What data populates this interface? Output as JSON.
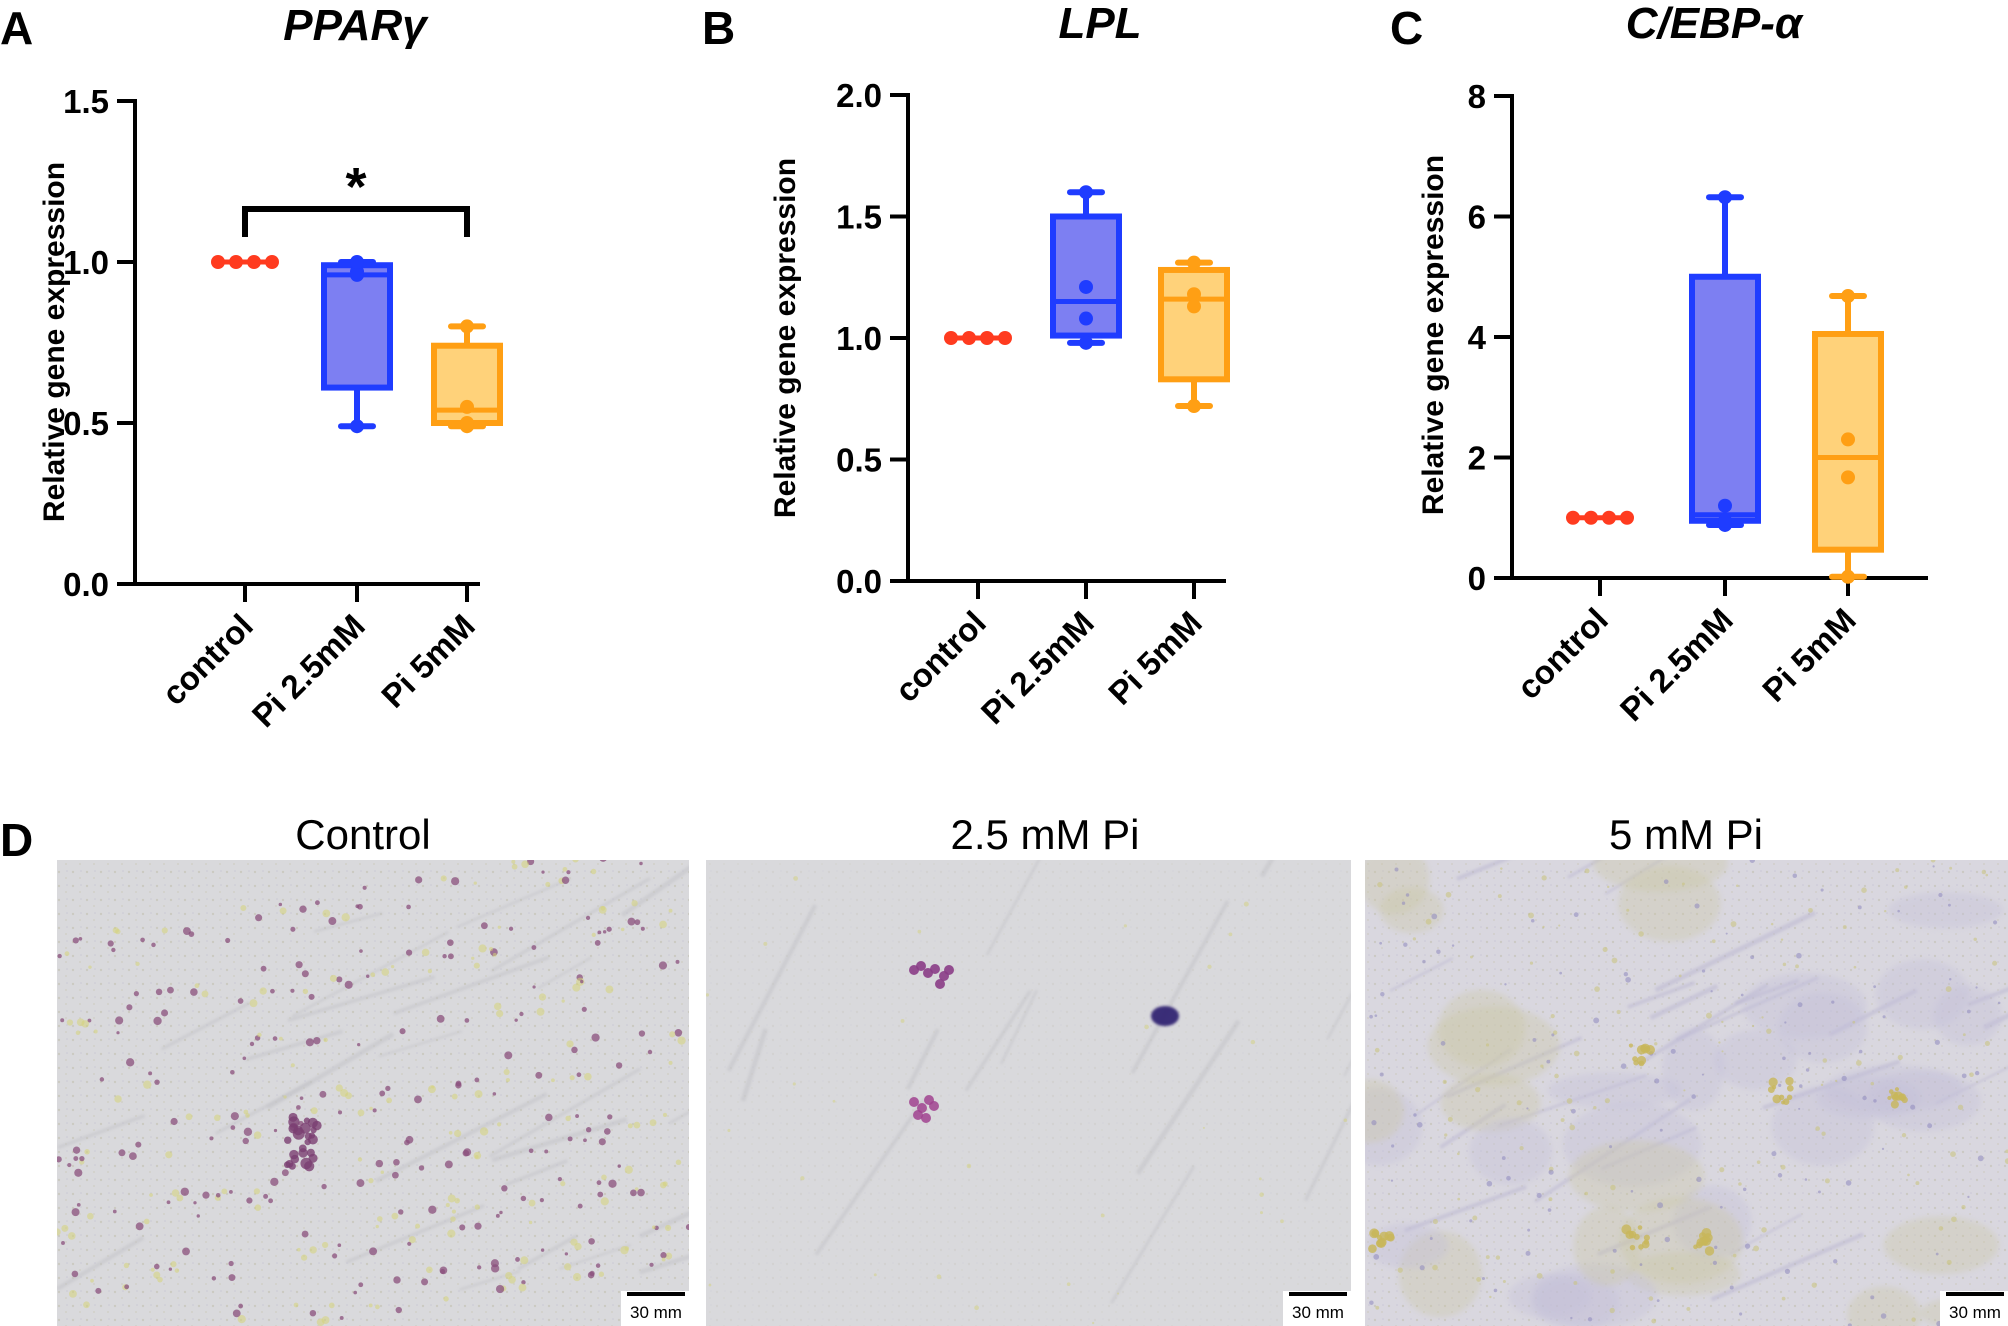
{
  "colors": {
    "control": "#ff3b1f",
    "pi25_stroke": "#1f3cff",
    "pi25_fill": "#7d7ff2",
    "pi5_stroke": "#ff9f14",
    "pi5_fill": "#ffd27a"
  },
  "chart_data": [
    {
      "panel": "A",
      "type": "box",
      "title": "PPARγ",
      "ylabel": "Relative gene expression",
      "ylim": [
        0,
        1.5
      ],
      "yticks": [
        "0.0",
        "0.5",
        "1.0",
        "1.5"
      ],
      "categories": [
        "control",
        "Pi 2.5mM",
        "Pi 5mM"
      ],
      "series": [
        {
          "min": 1.0,
          "q1": 1.0,
          "median": 1.0,
          "q3": 1.0,
          "max": 1.0,
          "points": [
            1.0,
            1.0,
            1.0,
            1.0
          ]
        },
        {
          "min": 0.49,
          "q1": 0.61,
          "median": 0.96,
          "q3": 0.99,
          "max": 1.0,
          "points": [
            0.49,
            0.96,
            0.97,
            1.0
          ]
        },
        {
          "min": 0.49,
          "q1": 0.5,
          "median": 0.54,
          "q3": 0.74,
          "max": 0.8,
          "points": [
            0.49,
            0.5,
            0.55,
            0.8
          ]
        }
      ],
      "significance": {
        "label": "*",
        "from": 0,
        "to": 2
      }
    },
    {
      "panel": "B",
      "type": "box",
      "title": "LPL",
      "ylabel": "Relative gene expression",
      "ylim": [
        0,
        2.0
      ],
      "yticks": [
        "0.0",
        "0.5",
        "1.0",
        "1.5",
        "2.0"
      ],
      "categories": [
        "control",
        "Pi 2.5mM",
        "Pi 5mM"
      ],
      "series": [
        {
          "min": 1.0,
          "q1": 1.0,
          "median": 1.0,
          "q3": 1.0,
          "max": 1.0,
          "points": [
            1.0,
            1.0,
            1.0,
            1.0
          ]
        },
        {
          "min": 0.98,
          "q1": 1.01,
          "median": 1.15,
          "q3": 1.5,
          "max": 1.6,
          "points": [
            0.98,
            1.08,
            1.21,
            1.6
          ]
        },
        {
          "min": 0.72,
          "q1": 0.83,
          "median": 1.16,
          "q3": 1.28,
          "max": 1.31,
          "points": [
            0.72,
            1.13,
            1.18,
            1.31
          ]
        }
      ]
    },
    {
      "panel": "C",
      "type": "box",
      "title": "C/EBP-α",
      "ylabel": "Relative gene expression",
      "ylim": [
        0,
        8
      ],
      "yticks": [
        "0",
        "2",
        "4",
        "6",
        "8"
      ],
      "categories": [
        "control",
        "Pi 2.5mM",
        "Pi 5mM"
      ],
      "series": [
        {
          "min": 1.0,
          "q1": 1.0,
          "median": 1.0,
          "q3": 1.0,
          "max": 1.0,
          "points": [
            1.0,
            1.0,
            1.0,
            1.0
          ]
        },
        {
          "min": 0.88,
          "q1": 0.95,
          "median": 1.05,
          "q3": 5.0,
          "max": 6.32,
          "points": [
            0.88,
            0.95,
            1.2,
            6.32
          ]
        },
        {
          "min": 0.02,
          "q1": 0.47,
          "median": 2.0,
          "q3": 4.05,
          "max": 4.68,
          "points": [
            0.02,
            1.67,
            2.3,
            4.68
          ]
        }
      ]
    }
  ],
  "images": [
    {
      "title": "Control",
      "scale_bar": "30 mm"
    },
    {
      "title": "2.5 mM Pi",
      "scale_bar": "30 mm"
    },
    {
      "title": "5 mM Pi",
      "scale_bar": "30 mm"
    }
  ],
  "image_panel_letter": "D"
}
